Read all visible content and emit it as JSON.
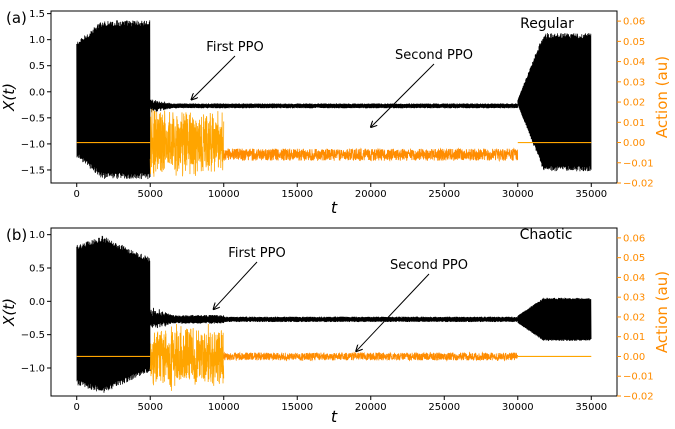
{
  "colors": {
    "signal": "#000000",
    "action": "#ffa500",
    "action_dense": "#ff8c00",
    "action_axis": "#ff8c00",
    "frame": "#000000"
  },
  "chart_data": [
    {
      "type": "line",
      "panel_label": "(a)",
      "annotation_title": "Regular",
      "xlabel": "t",
      "ylabel": "X(t)",
      "y2label": "Action (au)",
      "xlim": [
        -1750,
        36750
      ],
      "ylim": [
        -1.75,
        1.55
      ],
      "y2lim": [
        -0.02,
        0.065
      ],
      "xticks": [
        0,
        5000,
        10000,
        15000,
        20000,
        25000,
        30000,
        35000
      ],
      "yticks": [
        -1.5,
        -1.0,
        -0.5,
        0.0,
        0.5,
        1.0,
        1.5
      ],
      "yticklabels": [
        "−1.5",
        "−1.0",
        "−0.5",
        "0.0",
        "0.5",
        "1.0",
        "1.5"
      ],
      "y2ticks": [
        -0.02,
        -0.01,
        0.0,
        0.01,
        0.02,
        0.03,
        0.04,
        0.05,
        0.06
      ],
      "y2ticklabels": [
        "−0.02",
        "−0.01",
        "0.00",
        "0.01",
        "0.02",
        "0.03",
        "0.04",
        "0.05",
        "0.06"
      ],
      "series": [
        {
          "role": "X(t)",
          "axis": "left",
          "segments": [
            {
              "t": [
                0,
                5000
              ],
              "center": -0.15,
              "amplitude_start": 1.1,
              "amplitude_peak": 1.52,
              "amplitude_end": 1.52
            },
            {
              "t": [
                5000,
                30000
              ],
              "center": -0.27,
              "amplitude": 0.04,
              "initial_transient": 0.12
            },
            {
              "t": [
                30000,
                35000
              ],
              "center": -0.2,
              "amplitude_start": 0.04,
              "amplitude_end": 1.32
            }
          ]
        },
        {
          "role": "Action",
          "axis": "right",
          "segments": [
            {
              "t": [
                0,
                5000
              ],
              "value": 0.0
            },
            {
              "t": [
                5000,
                10000
              ],
              "value": 0.0,
              "amplitude": 0.018
            },
            {
              "t": [
                10000,
                30000
              ],
              "value": -0.006,
              "amplitude": 0.003
            },
            {
              "t": [
                30000,
                35000
              ],
              "value": 0.0
            }
          ]
        }
      ],
      "annotations": [
        {
          "text": "First PPO",
          "arrow_to": [
            7800,
            -0.15
          ]
        },
        {
          "text": "Second PPO",
          "arrow_to": [
            20000,
            -0.68
          ]
        }
      ]
    },
    {
      "type": "line",
      "panel_label": "(b)",
      "annotation_title": "Chaotic",
      "xlabel": "t",
      "ylabel": "X(t)",
      "y2label": "Action (au)",
      "xlim": [
        -1750,
        36750
      ],
      "ylim": [
        -1.42,
        1.1
      ],
      "y2lim": [
        -0.02,
        0.065
      ],
      "xticks": [
        0,
        5000,
        10000,
        15000,
        20000,
        25000,
        30000,
        35000
      ],
      "yticks": [
        -1.0,
        -0.5,
        0.0,
        0.5,
        1.0
      ],
      "yticklabels": [
        "−1.0",
        "−0.5",
        "0.0",
        "0.5",
        "1.0"
      ],
      "y2ticks": [
        -0.02,
        -0.01,
        0.0,
        0.01,
        0.02,
        0.03,
        0.04,
        0.05,
        0.06
      ],
      "y2ticklabels": [
        "−0.02",
        "−0.01",
        "0.00",
        "0.01",
        "0.02",
        "0.03",
        "0.04",
        "0.05",
        "0.06"
      ],
      "series": [
        {
          "role": "X(t)",
          "axis": "left",
          "segments": [
            {
              "t": [
                0,
                5000
              ],
              "center": -0.2,
              "amplitude_start": 1.05,
              "amplitude_peak": 1.18,
              "amplitude_end": 0.85
            },
            {
              "t": [
                5000,
                10000
              ],
              "center": -0.27,
              "amplitude": 0.06,
              "initial_transient": 0.15
            },
            {
              "t": [
                10000,
                30000
              ],
              "center": -0.27,
              "amplitude": 0.035
            },
            {
              "t": [
                30000,
                35000
              ],
              "center": -0.27,
              "amplitude_start": 0.05,
              "amplitude_end": 0.32
            }
          ]
        },
        {
          "role": "Action",
          "axis": "right",
          "segments": [
            {
              "t": [
                0,
                5000
              ],
              "value": 0.0
            },
            {
              "t": [
                5000,
                10000
              ],
              "value": 0.0,
              "amplitude": 0.018
            },
            {
              "t": [
                10000,
                30000
              ],
              "value": 0.0,
              "amplitude": 0.002
            },
            {
              "t": [
                30000,
                35000
              ],
              "value": 0.0
            }
          ]
        }
      ],
      "annotations": [
        {
          "text": "First PPO",
          "arrow_to": [
            9300,
            -0.12
          ]
        },
        {
          "text": "Second PPO",
          "arrow_to": [
            19000,
            -0.75
          ]
        }
      ]
    }
  ]
}
